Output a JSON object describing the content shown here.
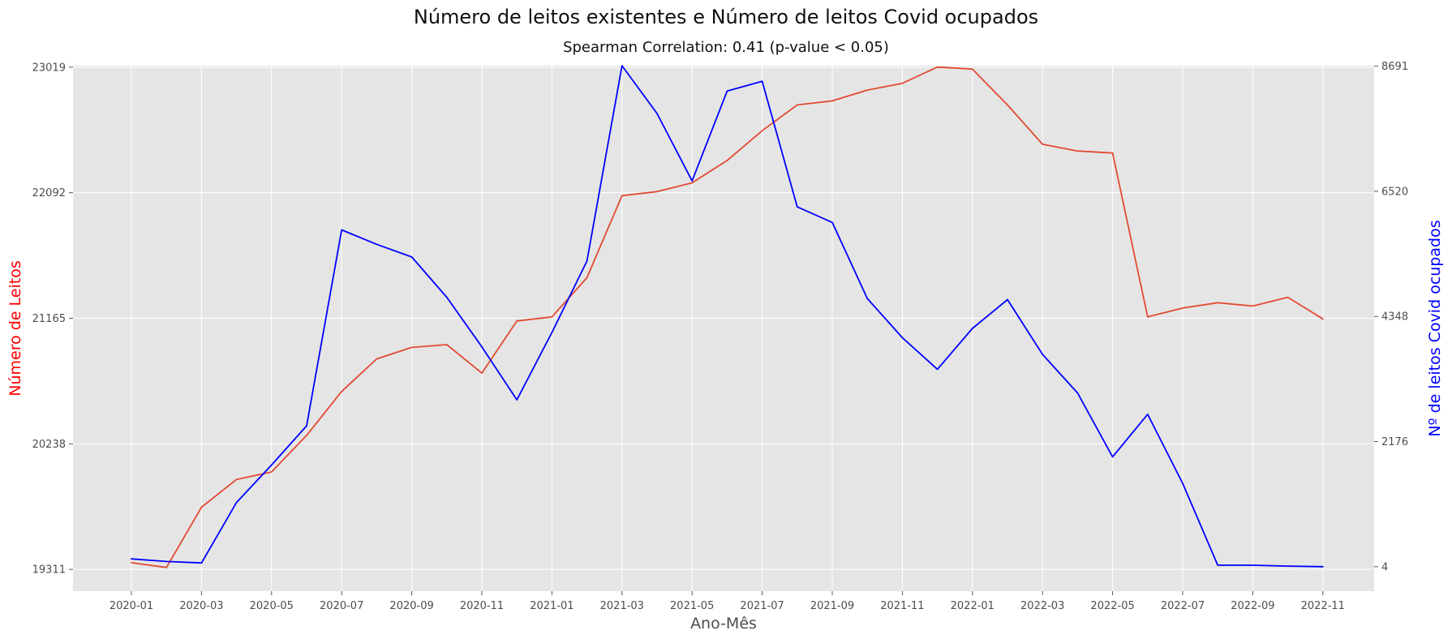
{
  "chart_data": {
    "type": "line",
    "title": "Número de leitos existentes e Número de leitos Covid ocupados",
    "subtitle": "Spearman Correlation: 0.41 (p-value < 0.05)",
    "xlabel": "Ano-Mês",
    "ylabel_left": "Número de Leitos",
    "ylabel_right": "Nº de leitos Covid ocupados",
    "grid": true,
    "colors": {
      "background": "#e5e5e5",
      "grid": "#ffffff",
      "left_series": "#e24a33",
      "right_series": "#0000ff",
      "left_label": "#ff0000",
      "right_label": "#0000ff"
    },
    "x": [
      "2020-01",
      "2020-02",
      "2020-03",
      "2020-04",
      "2020-05",
      "2020-06",
      "2020-07",
      "2020-08",
      "2020-09",
      "2020-10",
      "2020-11",
      "2020-12",
      "2021-01",
      "2021-02",
      "2021-03",
      "2021-04",
      "2021-05",
      "2021-06",
      "2021-07",
      "2021-08",
      "2021-09",
      "2021-10",
      "2021-11",
      "2021-12",
      "2022-01",
      "2022-02",
      "2022-03",
      "2022-04",
      "2022-05",
      "2022-06",
      "2022-07",
      "2022-08",
      "2022-09",
      "2022-10",
      "2022-11"
    ],
    "x_tick_labels": [
      "2020-01",
      "2020-03",
      "2020-05",
      "2020-07",
      "2020-09",
      "2020-11",
      "2021-01",
      "2021-03",
      "2021-05",
      "2021-07",
      "2021-09",
      "2021-11",
      "2022-01",
      "2022-03",
      "2022-05",
      "2022-07",
      "2022-09",
      "2022-11"
    ],
    "y_left_ticks": [
      19311,
      20238,
      21165,
      22092,
      23019
    ],
    "y_right_ticks": [
      4,
      2176,
      4348,
      6520,
      8691
    ],
    "y_left_range": [
      19150,
      23030
    ],
    "y_right_range": [
      -420,
      8700
    ],
    "series": [
      {
        "axis": "left",
        "values": [
          19360,
          19325,
          19770,
          19975,
          20030,
          20300,
          20625,
          20865,
          20950,
          20970,
          20760,
          21145,
          21175,
          21465,
          22070,
          22100,
          22165,
          22330,
          22550,
          22740,
          22770,
          22850,
          22900,
          23020,
          23005,
          22740,
          22450,
          22400,
          22385,
          21175,
          21240,
          21280,
          21255,
          21320,
          21160
        ]
      },
      {
        "axis": "right",
        "values": [
          140,
          95,
          70,
          1120,
          1770,
          2450,
          5850,
          5600,
          5380,
          4680,
          3820,
          2900,
          4070,
          5310,
          8700,
          7870,
          6700,
          8260,
          8430,
          6250,
          5980,
          4660,
          3980,
          3430,
          4140,
          4640,
          3690,
          3020,
          1910,
          2650,
          1450,
          30,
          30,
          15,
          5
        ]
      }
    ]
  }
}
